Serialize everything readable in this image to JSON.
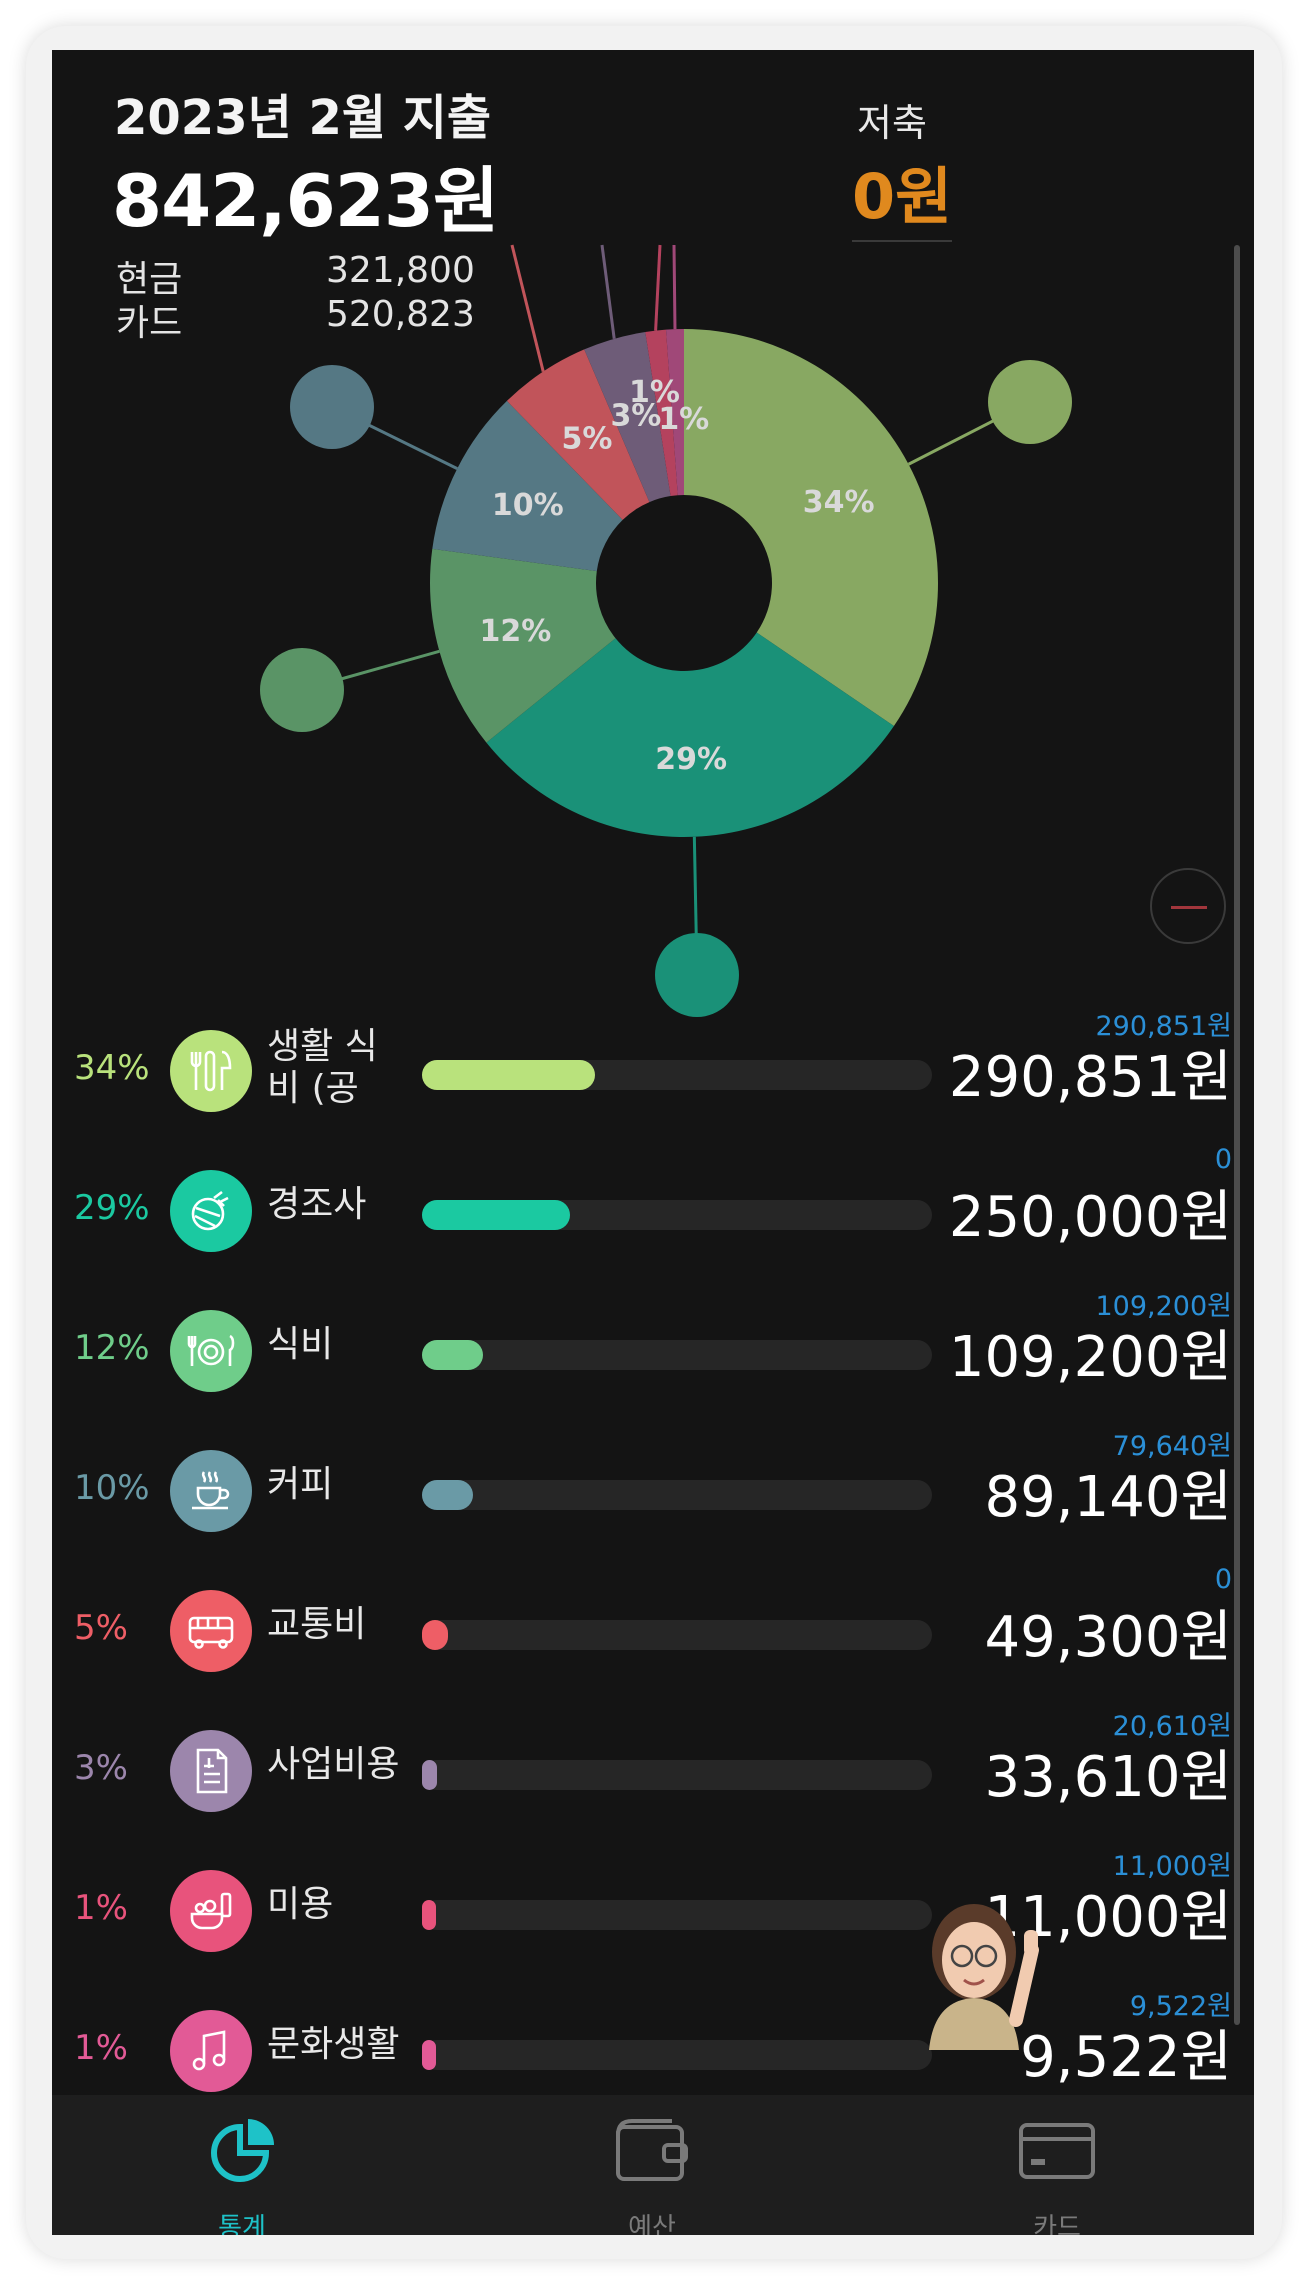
{
  "header": {
    "title": "2023년 2월 지출",
    "total": "842,623원",
    "savings_label": "저축",
    "savings_value": "0원"
  },
  "payment": [
    {
      "label": "현금",
      "amount": "321,800"
    },
    {
      "label": "카드",
      "amount": "520,823"
    }
  ],
  "chart_data": {
    "type": "pie",
    "categories": [
      "생활 식비 (공",
      "경조사",
      "식비",
      "커피",
      "교통비",
      "사업비용",
      "미용",
      "문화생활"
    ],
    "values": [
      290851,
      250000,
      109200,
      89140,
      49300,
      33610,
      11000,
      9522
    ],
    "slice_labels": [
      "34%",
      "29%",
      "12%",
      "10%",
      "5%",
      "3%",
      "1%",
      "1%"
    ],
    "colors": [
      "#88a862",
      "#1a9178",
      "#5a9466",
      "#557884",
      "#c1545a",
      "#6e5c78",
      "#b4425e",
      "#a04878"
    ]
  },
  "categories": [
    {
      "pct": "34%",
      "name_line1": "생활 식",
      "name_line2": "비 (공",
      "budget": "290,851원",
      "amount": "290,851원",
      "fill": 0.34,
      "color": "#b9e27c",
      "icon": "cutlery-icon"
    },
    {
      "pct": "29%",
      "name_line1": "경조사",
      "name_line2": "",
      "budget": "0",
      "amount": "250,000원",
      "fill": 0.29,
      "color": "#1bc9a1",
      "icon": "gift-icon"
    },
    {
      "pct": "12%",
      "name_line1": "식비",
      "name_line2": "",
      "budget": "109,200원",
      "amount": "109,200원",
      "fill": 0.12,
      "color": "#6fcd8a",
      "icon": "plate-icon"
    },
    {
      "pct": "10%",
      "name_line1": "커피",
      "name_line2": "",
      "budget": "79,640원",
      "amount": "89,140원",
      "fill": 0.1,
      "color": "#6a9aa6",
      "icon": "coffee-icon"
    },
    {
      "pct": "5%",
      "name_line1": "교통비",
      "name_line2": "",
      "budget": "0",
      "amount": "49,300원",
      "fill": 0.05,
      "color": "#ee5e66",
      "icon": "bus-icon"
    },
    {
      "pct": "3%",
      "name_line1": "사업비용",
      "name_line2": "",
      "budget": "20,610원",
      "amount": "33,610원",
      "fill": 0.03,
      "color": "#9c86ac",
      "icon": "receipt-icon"
    },
    {
      "pct": "1%",
      "name_line1": "미용",
      "name_line2": "",
      "budget": "11,000원",
      "amount": "11,000원",
      "fill": 0.01,
      "color": "#e8537c",
      "icon": "beauty-icon"
    },
    {
      "pct": "1%",
      "name_line1": "문화생활",
      "name_line2": "",
      "budget": "9,522원",
      "amount": "9,522원",
      "fill": 0.01,
      "color": "#e25a96",
      "icon": "music-icon"
    }
  ],
  "tabs": [
    {
      "label": "통계",
      "icon": "pie-chart-icon",
      "active": true
    },
    {
      "label": "예산",
      "icon": "wallet-icon",
      "active": false
    },
    {
      "label": "카드",
      "icon": "card-icon",
      "active": false
    }
  ]
}
